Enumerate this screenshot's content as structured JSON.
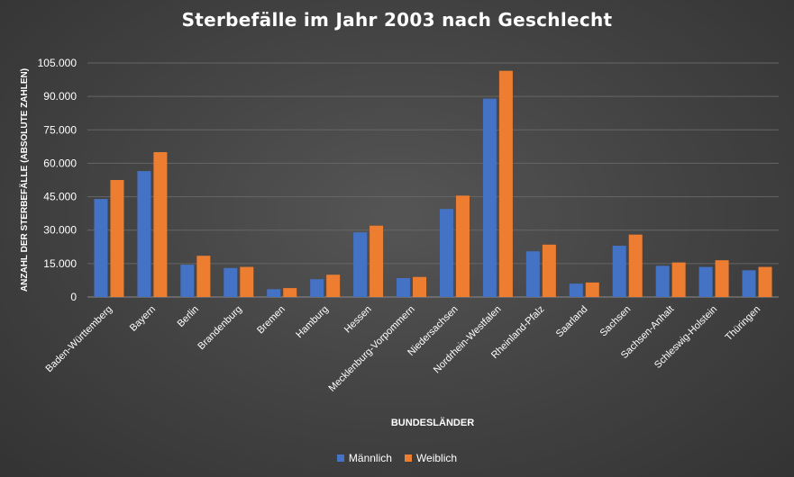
{
  "chart_data": {
    "type": "bar",
    "title": "Sterbefälle im Jahr 2003 nach Geschlecht",
    "xlabel": "BUNDESLÄNDER",
    "ylabel": "ANZAHL DER STERBEFÄLLE (ABSOLUTE ZAHLEN)",
    "ylim": [
      0,
      105000
    ],
    "yticks": [
      0,
      15000,
      30000,
      45000,
      60000,
      75000,
      90000,
      105000
    ],
    "ytick_labels": [
      "0",
      "15.000",
      "30.000",
      "45.000",
      "60.000",
      "75.000",
      "90.000",
      "105.000"
    ],
    "grid": true,
    "legend": "bottom",
    "categories": [
      "Baden-Württemberg",
      "Bayern",
      "Berlin",
      "Brandenburg",
      "Bremen",
      "Hamburg",
      "Hessen",
      "Mecklenburg-Vorpommern",
      "Niedersachsen",
      "Nordrhein-Westfalen",
      "Rheinland-Pfalz",
      "Saarland",
      "Sachsen",
      "Sachsen-Anhalt",
      "Schleswig-Holstein",
      "Thüringen"
    ],
    "series": [
      {
        "name": "Männlich",
        "color": "#4472c4",
        "values": [
          44000,
          56500,
          14500,
          13000,
          3500,
          8000,
          29000,
          8500,
          39500,
          89000,
          20500,
          6000,
          23000,
          14000,
          13500,
          12000
        ]
      },
      {
        "name": "Weiblich",
        "color": "#ed7d31",
        "values": [
          52500,
          65000,
          18500,
          13500,
          4000,
          10000,
          32000,
          9000,
          45500,
          101500,
          23500,
          6500,
          28000,
          15500,
          16500,
          13500
        ]
      }
    ]
  }
}
